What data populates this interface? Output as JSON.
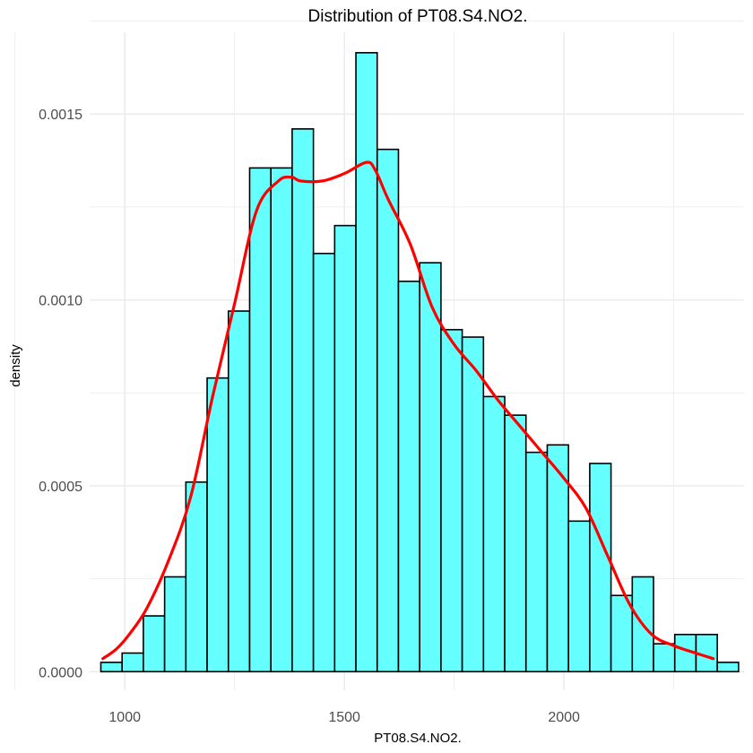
{
  "chart_data": {
    "type": "bar",
    "title": "Distribution of PT08.S4.NO2.",
    "xlabel": "PT08.S4.NO2.",
    "ylabel": "density",
    "xlim": [
      920,
      2410
    ],
    "ylim": [
      -5e-05,
      0.00172
    ],
    "x_ticks": [
      1000,
      1500,
      2000
    ],
    "x_tick_labels": [
      "1000",
      "1500",
      "2000"
    ],
    "y_ticks": [
      0,
      0.0005,
      0.001,
      0.0015
    ],
    "y_tick_labels": [
      "0.0000",
      "0.0005",
      "0.0010",
      "0.0015"
    ],
    "grid": true,
    "bin_width": 48.4,
    "bins": [
      {
        "x0": 945.5,
        "x1": 993.9,
        "density": 2.5e-05
      },
      {
        "x0": 993.9,
        "x1": 1042.3,
        "density": 5e-05
      },
      {
        "x0": 1042.3,
        "x1": 1090.7,
        "density": 0.00015
      },
      {
        "x0": 1090.7,
        "x1": 1139.1,
        "density": 0.000255
      },
      {
        "x0": 1139.1,
        "x1": 1187.5,
        "density": 0.00051
      },
      {
        "x0": 1187.5,
        "x1": 1235.9,
        "density": 0.00079
      },
      {
        "x0": 1235.9,
        "x1": 1284.3,
        "density": 0.00097
      },
      {
        "x0": 1284.3,
        "x1": 1332.7,
        "density": 0.001355
      },
      {
        "x0": 1332.7,
        "x1": 1381.1,
        "density": 0.001355
      },
      {
        "x0": 1381.1,
        "x1": 1429.5,
        "density": 0.00146
      },
      {
        "x0": 1429.5,
        "x1": 1477.9,
        "density": 0.001125
      },
      {
        "x0": 1477.9,
        "x1": 1526.3,
        "density": 0.0012
      },
      {
        "x0": 1526.3,
        "x1": 1574.7,
        "density": 0.001665
      },
      {
        "x0": 1574.7,
        "x1": 1623.1,
        "density": 0.001405
      },
      {
        "x0": 1623.1,
        "x1": 1671.5,
        "density": 0.00105
      },
      {
        "x0": 1671.5,
        "x1": 1719.9,
        "density": 0.0011
      },
      {
        "x0": 1719.9,
        "x1": 1768.3,
        "density": 0.00092
      },
      {
        "x0": 1768.3,
        "x1": 1816.7,
        "density": 0.0009
      },
      {
        "x0": 1816.7,
        "x1": 1865.1,
        "density": 0.00074
      },
      {
        "x0": 1865.1,
        "x1": 1913.5,
        "density": 0.00069
      },
      {
        "x0": 1913.5,
        "x1": 1961.9,
        "density": 0.00059
      },
      {
        "x0": 1961.9,
        "x1": 2010.3,
        "density": 0.00061
      },
      {
        "x0": 2010.3,
        "x1": 2058.7,
        "density": 0.000405
      },
      {
        "x0": 2058.7,
        "x1": 2107.1,
        "density": 0.00056
      },
      {
        "x0": 2107.1,
        "x1": 2155.5,
        "density": 0.000205
      },
      {
        "x0": 2155.5,
        "x1": 2203.9,
        "density": 0.000255
      },
      {
        "x0": 2203.9,
        "x1": 2252.3,
        "density": 7.5e-05
      },
      {
        "x0": 2252.3,
        "x1": 2300.7,
        "density": 0.0001
      },
      {
        "x0": 2300.7,
        "x1": 2349.1,
        "density": 0.0001
      },
      {
        "x0": 2349.1,
        "x1": 2397.5,
        "density": 2.5e-05
      }
    ],
    "density_curve": {
      "x": [
        950,
        980,
        1010,
        1050,
        1100,
        1150,
        1200,
        1250,
        1300,
        1350,
        1380,
        1400,
        1450,
        1500,
        1550,
        1570,
        1600,
        1650,
        1700,
        1750,
        1800,
        1850,
        1900,
        1950,
        2000,
        2050,
        2100,
        2150,
        2200,
        2250,
        2300,
        2340
      ],
      "y": [
        3.5e-05,
        6e-05,
        0.0001,
        0.00017,
        0.0003,
        0.00047,
        0.00074,
        0.00099,
        0.00124,
        0.00132,
        0.00133,
        0.00132,
        0.00132,
        0.00134,
        0.00137,
        0.00135,
        0.00127,
        0.00115,
        0.00098,
        0.00088,
        0.00081,
        0.00073,
        0.00066,
        0.00059,
        0.00052,
        0.00044,
        0.00031,
        0.00018,
        0.0001,
        7e-05,
        5e-05,
        3.5e-05
      ]
    },
    "bar_fill": "#66ffff",
    "bar_stroke": "#000000",
    "curve_color": "#ff0000",
    "grid_color": "#ebebeb"
  }
}
